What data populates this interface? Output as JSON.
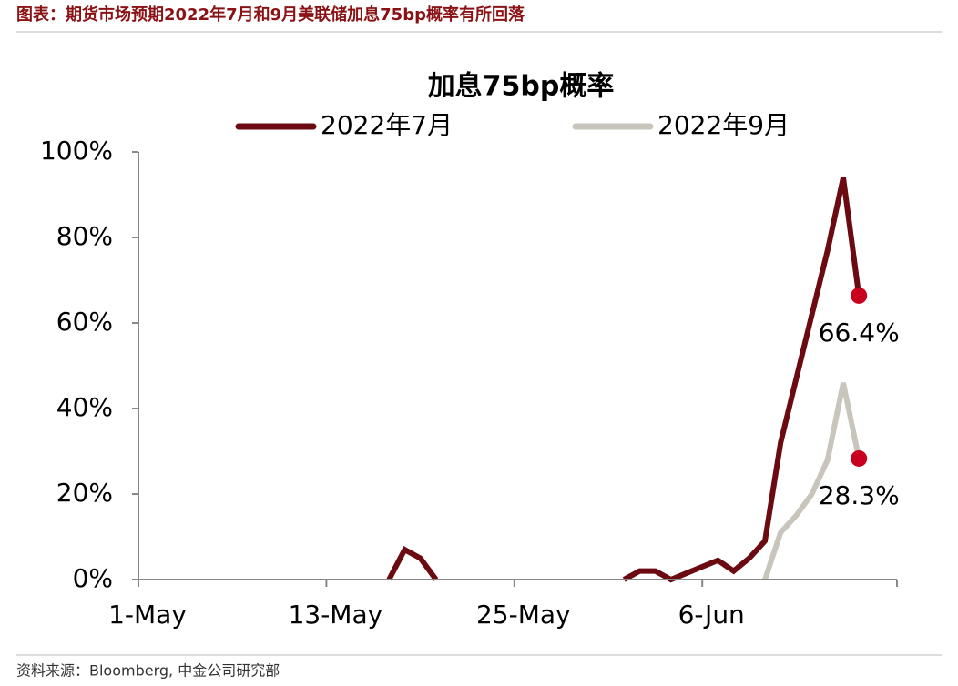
{
  "header": {
    "title": "图表：期货市场预期2022年7月和9月美联储加息75bp概率有所回落"
  },
  "chart_data": {
    "type": "line",
    "title": "加息75bp概率",
    "categories": [
      "1-May",
      null,
      null,
      null,
      null,
      null,
      null,
      null,
      null,
      null,
      null,
      null,
      "13-May",
      null,
      null,
      null,
      null,
      null,
      null,
      null,
      null,
      null,
      null,
      null,
      "25-May",
      null,
      null,
      null,
      null,
      null,
      null,
      null,
      null,
      null,
      null,
      null,
      "6-Jun",
      null,
      null,
      null,
      null,
      null,
      null,
      null,
      null,
      null,
      null,
      null,
      null
    ],
    "series": [
      {
        "name": "2022年7月",
        "color": "#6b0a10",
        "values": [
          null,
          null,
          null,
          null,
          null,
          null,
          null,
          null,
          null,
          null,
          null,
          null,
          null,
          null,
          null,
          null,
          0,
          7,
          5,
          0,
          null,
          null,
          null,
          null,
          null,
          null,
          null,
          null,
          null,
          null,
          null,
          0,
          2,
          2,
          0,
          1.5,
          3,
          4.5,
          2,
          5,
          9,
          32,
          47,
          62,
          77,
          94,
          66.4,
          null,
          null
        ],
        "value_labels": [
          null,
          null,
          null,
          null,
          null,
          null,
          null,
          null,
          null,
          null,
          null,
          null,
          null,
          null,
          null,
          null,
          null,
          null,
          null,
          null,
          null,
          null,
          null,
          null,
          null,
          null,
          null,
          null,
          null,
          null,
          null,
          null,
          null,
          null,
          null,
          null,
          null,
          null,
          null,
          null,
          null,
          null,
          null,
          null,
          null,
          null,
          "66.4%",
          null,
          null
        ]
      },
      {
        "name": "2022年9月",
        "color": "#c8c6bc",
        "values": [
          null,
          null,
          null,
          null,
          null,
          null,
          null,
          null,
          null,
          null,
          null,
          null,
          null,
          null,
          null,
          null,
          null,
          null,
          null,
          null,
          null,
          null,
          null,
          null,
          null,
          null,
          null,
          null,
          null,
          null,
          null,
          null,
          null,
          null,
          null,
          null,
          null,
          null,
          null,
          null,
          0,
          11,
          15,
          20,
          28,
          46,
          28.3,
          null,
          null
        ],
        "value_labels": [
          null,
          null,
          null,
          null,
          null,
          null,
          null,
          null,
          null,
          null,
          null,
          null,
          null,
          null,
          null,
          null,
          null,
          null,
          null,
          null,
          null,
          null,
          null,
          null,
          null,
          null,
          null,
          null,
          null,
          null,
          null,
          null,
          null,
          null,
          null,
          null,
          null,
          null,
          null,
          null,
          null,
          null,
          null,
          null,
          null,
          null,
          "28.3%",
          null,
          null
        ]
      }
    ],
    "marker_color": "#c8001e",
    "ylim": [
      0,
      100
    ],
    "yticks": [
      {
        "value": 0,
        "label": "0%"
      },
      {
        "value": 20,
        "label": "20%"
      },
      {
        "value": 40,
        "label": "40%"
      },
      {
        "value": 60,
        "label": "60%"
      },
      {
        "value": 80,
        "label": "80%"
      },
      {
        "value": 100,
        "label": "100%"
      }
    ],
    "grid": false
  },
  "footer": {
    "source": "资料来源：Bloomberg, 中金公司研究部"
  }
}
